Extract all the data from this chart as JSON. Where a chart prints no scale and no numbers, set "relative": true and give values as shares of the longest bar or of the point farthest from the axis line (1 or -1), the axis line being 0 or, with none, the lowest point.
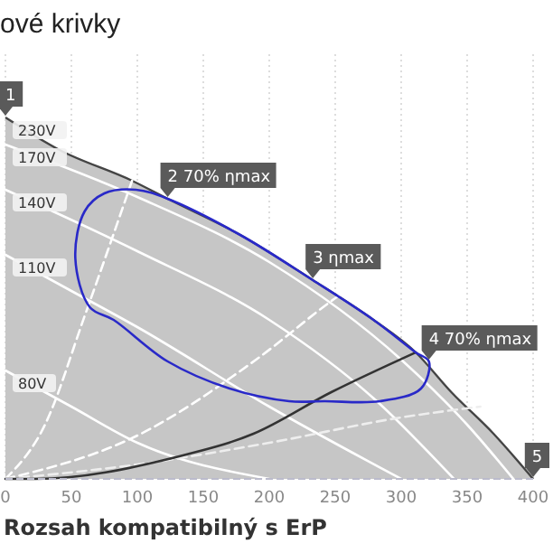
{
  "chart_data": {
    "type": "line",
    "title": "ové krivky",
    "relative": true,
    "xlim": [
      0,
      400
    ],
    "xticks": [
      0,
      50,
      100,
      150,
      200,
      250,
      300,
      350,
      400
    ],
    "grid": "x",
    "annotations": [
      {
        "text": "1",
        "x": 0,
        "y": 1
      },
      {
        "text": "2 70% ηmax",
        "x": 123,
        "y": 0.775
      },
      {
        "text": "3 ηmax",
        "x": 233,
        "y": 0.55
      },
      {
        "text": "4 70% ηmax",
        "x": 321,
        "y": 0.325
      },
      {
        "text": "5",
        "x": 400,
        "y": 0
      },
      "Rozsah kompatibilný s ErP"
    ],
    "series": [
      {
        "name": "230V",
        "type": "area",
        "color": "#c6c6c6",
        "x": [
          0,
          41,
          96,
          123,
          178,
          233,
          279,
          311,
          338,
          370,
          400
        ],
        "values": [
          1,
          0.91,
          0.825,
          0.775,
          0.675,
          0.55,
          0.44,
          0.35,
          0.24,
          0.125,
          0
        ]
      },
      {
        "name": "170V",
        "color": "#ffffff",
        "x": [
          0,
          100,
          200,
          300,
          350,
          385
        ],
        "values": [
          0.925,
          0.78,
          0.6,
          0.33,
          0.15,
          0
        ]
      },
      {
        "name": "140V",
        "color": "#ffffff",
        "x": [
          0,
          100,
          200,
          280,
          340
        ],
        "values": [
          0.8,
          0.63,
          0.44,
          0.22,
          0
        ]
      },
      {
        "name": "110V",
        "color": "#ffffff",
        "x": [
          0,
          50,
          100,
          200,
          300
        ],
        "values": [
          0.62,
          0.52,
          0.42,
          0.2,
          0
        ]
      },
      {
        "name": "80V",
        "color": "#ffffff",
        "x": [
          0,
          50,
          100,
          200
        ],
        "values": [
          0.3,
          0.2,
          0.1,
          0
        ]
      },
      {
        "color": "#ffffff",
        "line_style": "dashed",
        "x": [
          0,
          30,
          60,
          96
        ],
        "values": [
          0,
          0.15,
          0.45,
          0.825
        ]
      },
      {
        "color": "#ffffff",
        "line_style": "dashed",
        "x": [
          0,
          100,
          190,
          250,
          300
        ],
        "values": [
          0,
          0.12,
          0.33,
          0.5,
          0.62
        ]
      },
      {
        "color": "#eeeeee",
        "line_style": "dashed",
        "x": [
          0,
          100,
          200,
          300,
          360
        ],
        "values": [
          0,
          0.04,
          0.1,
          0.17,
          0.2
        ]
      },
      {
        "color": "#333333",
        "x": [
          0,
          23,
          129,
          188,
          247,
          311
        ],
        "values": [
          0,
          0,
          0.06,
          0.125,
          0.24,
          0.35
        ]
      }
    ]
  }
}
